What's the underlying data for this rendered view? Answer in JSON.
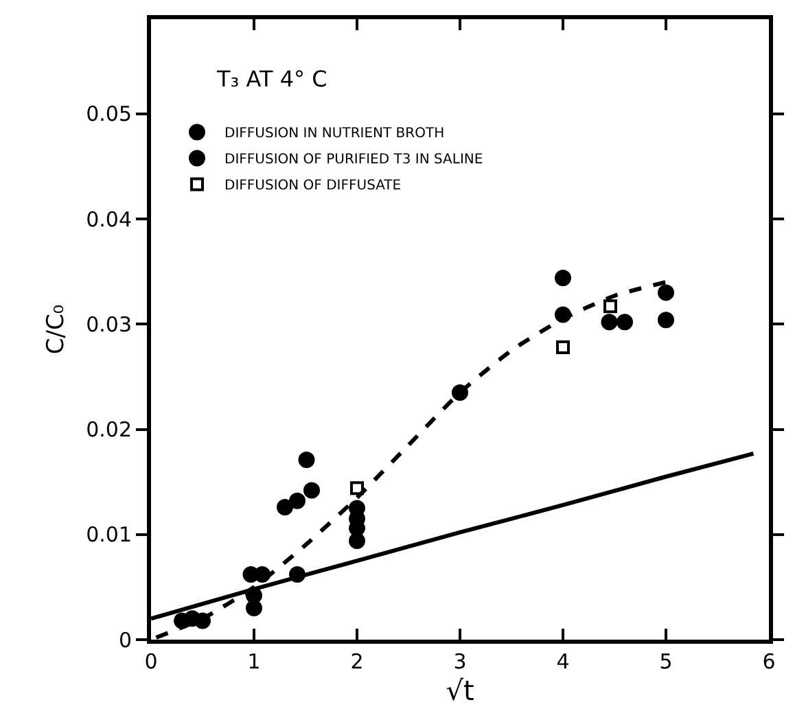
{
  "chart_data": {
    "type": "scatter",
    "xlabel": "√t",
    "ylabel": "C/C₀",
    "annotations": [
      "T₃ AT 4° C"
    ],
    "xlim": [
      0,
      6
    ],
    "ylim": [
      0,
      0.059
    ],
    "xticks": [
      0,
      1,
      2,
      3,
      4,
      5,
      6
    ],
    "yticks": [
      0,
      0.01,
      0.02,
      0.03,
      0.04,
      0.05
    ],
    "grid": false,
    "legend": "top left",
    "series": [
      {
        "name": "DIFFUSION IN NUTRIENT BROTH",
        "marker": "circle",
        "color": "#000000",
        "x": [
          0.3,
          0.4,
          0.5,
          1,
          1,
          0.97,
          1.08,
          2,
          2,
          2,
          2,
          3
        ],
        "values": [
          0.0018,
          0.002,
          0.0018,
          0.003,
          0.0042,
          0.0062,
          0.0062,
          0.0125,
          0.0115,
          0.0106,
          0.0094,
          0.0235
        ]
      },
      {
        "name": "DIFFUSION OF PURIFIED T3 IN SALINE",
        "marker": "circle",
        "color": "#000000",
        "x": [
          1.3,
          1.42,
          1.42,
          1.51,
          1.56,
          4,
          4,
          4.45,
          4.6,
          5,
          5
        ],
        "values": [
          0.0126,
          0.0132,
          0.0062,
          0.0171,
          0.0142,
          0.0344,
          0.0309,
          0.0302,
          0.0302,
          0.033,
          0.0304
        ]
      },
      {
        "name": "DIFFUSION OF DIFFUSATE",
        "marker": "square",
        "color": "#000000",
        "x": [
          2,
          4,
          4.46
        ],
        "values": [
          0.0144,
          0.0278,
          0.0317
        ]
      },
      {
        "type": "line",
        "line_style": "dashed",
        "color": "#000000",
        "x": [
          0.05,
          0.5,
          1,
          1.5,
          2,
          2.5,
          3,
          3.5,
          4,
          4.5,
          5
        ],
        "values": [
          0.0002,
          0.002,
          0.005,
          0.009,
          0.0135,
          0.0185,
          0.0235,
          0.0275,
          0.0305,
          0.0327,
          0.034
        ]
      },
      {
        "type": "line",
        "line_style": "solid",
        "color": "#000000",
        "x": [
          0,
          1,
          2,
          3,
          4,
          5,
          5.85
        ],
        "values": [
          0.002,
          0.0048,
          0.0075,
          0.0102,
          0.0128,
          0.0155,
          0.0177
        ]
      }
    ]
  }
}
